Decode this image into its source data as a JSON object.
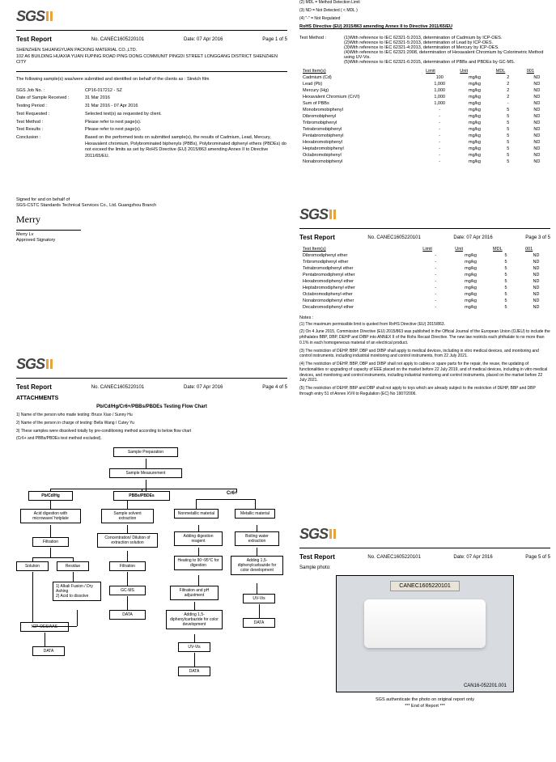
{
  "logo_text": "SGS",
  "report_label": "Test Report",
  "report_no_label": "No.",
  "report_no": "CANEC1605220101",
  "date_label": "Date:",
  "date": "07 Apr 2016",
  "page1": "Page 1 of 5",
  "page2_meta": "Page 2 of 5",
  "page3": "Page 3 of 5",
  "page4": "Page 4 of 5",
  "page5": "Page 5 of 5",
  "company_name": "SHENZHEN SHUANGYUAN PACKING MATERIAL CO.,LTD.",
  "company_addr": "102 A6 BUILDING HUAXIA YUAN FUPING ROAD PING DONG COMMUNIT PINGDI STREET LONGGANG DISTRICT SHENZHEN CITY",
  "intro": "The following sample(s) was/were submitted and identified on behalf of the clients as : Stretch film",
  "p1_rows": [
    {
      "l": "SGS Job No. :",
      "v": "CP16-017212 - SZ"
    },
    {
      "l": "Date of Sample Received :",
      "v": "31 Mar 2016"
    },
    {
      "l": "Testing Period :",
      "v": "31 Mar 2016 - 07 Apr 2016"
    },
    {
      "l": "Test Requested :",
      "v": "Selected test(s) as requested by client."
    },
    {
      "l": "Test Method :",
      "v": "Please refer to next page(s)."
    },
    {
      "l": "Test Results :",
      "v": "Please refer to next page(s)."
    },
    {
      "l": "Conclusion :",
      "v": "Based on the performed tests on submitted sample(s), the results of Cadmium, Lead, Mercury, Hexavalent chromium, Polybrominated biphenyls (PBBs), Polybrominated diphenyl ethers (PBDEs) do not exceed  the limits as set by RoHS Directive (EU) 2015/863 amending Annex II to Directive 2011/65/EU."
    }
  ],
  "signed_for": "Signed for and on behalf of",
  "signed_company": "SGS-CSTC Standards Technical Services Co., Ltd. Guangzhou Branch",
  "signature": "Merry",
  "signatory_name": "Merry Lv",
  "signatory_title": "Approved Signatory",
  "p2_prenotes": [
    "(2) MDL = Method Detection Limit",
    "(3) ND = Not Detected ( < MDL )",
    "(4) \"-\" = Not Regulated"
  ],
  "rohs_title": "RoHS Directive (EU) 2015/863 amending Annex II to Directive 2011/65/EU",
  "p2_method_label": "Test Method :",
  "p2_methods": [
    "(1)With reference to IEC 62321-5:2013, determination of Cadmium by ICP-OES.",
    "(2)With reference to IEC 62321-5:2013, determination of Lead by ICP-OES.",
    "(3)With reference to IEC 62321-4:2013, determination of Mercury by ICP-OES.",
    "(4)With reference to IEC 62321:2008, determination of Hexavalent Chromium by Colorimetric Method using UV-Vis.",
    "(5)With reference to IEC 62321-6:2015, determination of PBBs and PBDEs by GC-MS."
  ],
  "table_headers": [
    "Test Item(s)",
    "Limit",
    "Unit",
    "MDL",
    "001"
  ],
  "p2_table": [
    [
      "Cadmium (Cd)",
      "100",
      "mg/kg",
      "2",
      "ND"
    ],
    [
      "Lead (Pb)",
      "1,000",
      "mg/kg",
      "2",
      "ND"
    ],
    [
      "Mercury (Hg)",
      "1,000",
      "mg/kg",
      "2",
      "ND"
    ],
    [
      "Hexavalent Chromium (CrVI)",
      "1,000",
      "mg/kg",
      "2",
      "ND"
    ],
    [
      "Sum of PBBs",
      "1,000",
      "mg/kg",
      "-",
      "ND"
    ],
    [
      "Monobromobiphenyl",
      "-",
      "mg/kg",
      "5",
      "ND"
    ],
    [
      "Dibromobiphenyl",
      "-",
      "mg/kg",
      "5",
      "ND"
    ],
    [
      "Tribromobiphenyl",
      "-",
      "mg/kg",
      "5",
      "ND"
    ],
    [
      "Tetrabromobiphenyl",
      "-",
      "mg/kg",
      "5",
      "ND"
    ],
    [
      "Pentabromobiphenyl",
      "-",
      "mg/kg",
      "5",
      "ND"
    ],
    [
      "Hexabromobiphenyl",
      "-",
      "mg/kg",
      "5",
      "ND"
    ],
    [
      "Heptabromobiphenyl",
      "-",
      "mg/kg",
      "5",
      "ND"
    ],
    [
      "Octabromobiphenyl",
      "-",
      "mg/kg",
      "5",
      "ND"
    ],
    [
      "Nonabromobiphenyl",
      "-",
      "mg/kg",
      "5",
      "ND"
    ]
  ],
  "p3_table": [
    [
      "Dibromodiphenyl ether",
      "-",
      "mg/kg",
      "5",
      "ND"
    ],
    [
      "Tribromodiphenyl ether",
      "-",
      "mg/kg",
      "5",
      "ND"
    ],
    [
      "Tetrabromodiphenyl ether",
      "-",
      "mg/kg",
      "5",
      "ND"
    ],
    [
      "Pentabromodiphenyl ether",
      "-",
      "mg/kg",
      "5",
      "ND"
    ],
    [
      "Hexabromodiphenyl ether",
      "-",
      "mg/kg",
      "5",
      "ND"
    ],
    [
      "Heptabromodiphenyl ether",
      "-",
      "mg/kg",
      "5",
      "ND"
    ],
    [
      "Octabromodiphenyl ether",
      "-",
      "mg/kg",
      "5",
      "ND"
    ],
    [
      "Nonabromodiphenyl ether",
      "-",
      "mg/kg",
      "5",
      "ND"
    ],
    [
      "Decabromodiphenyl ether",
      "-",
      "mg/kg",
      "5",
      "ND"
    ]
  ],
  "notes_label": "Notes :",
  "p3_notes": [
    "(1) The maximum permissible limit is quoted from RoHS Directive (EU) 2015/863.",
    "(2) On 4 June  2015, Commission Directive (EU) 2015/863 was published in the Official Journal of the European Union (OJEU) to include the phthalates BBP, DBP, DEHP and DIBP into ANNEX II of the Rohs Recast Directive. The new law restricts each phthalate to no more than 0.1% in each homogeneous material of an electrical product.",
    "(3) The restriction of DEHP, BBP, DBP and DIBP shall apply to medical devices, including in vitro medical devices, and monitoring and control instruments, including industrial monitoring and control instruments, from 22 July 2021.",
    "(4) The restriction of DEHP, BBP, DBP and DIBP shall not apply to cables or spare parts for the repair, the reuse, the updating of functionalities or upgrading of capacity of EEE placed on the market before 22 July 2019, and of medical devices, including in vitro medical devices, and monitoring and control instruments, including industrial monitoring and control instruments, placed on the market before 22 July 2021.",
    "(5) The restriction of DEHP, BBP and DBP shall not apply to toys which are already subject to the restriction of DEHP, BBP and DBP through entry 51 of Annex XVII to Regulation (EC) No 1907/2006."
  ],
  "attachments_label": "ATTACHMENTS",
  "flow_title": "Pb/Cd/Hg/Cr6+/PBBs/PBDEs Testing Flow Chart",
  "flow_intro": [
    "1) Name of the person who made testing:  Bruce Xiao / Sunny Hu",
    "2) Name of the person in charge of testing:  Bella Wang / Cutey Yu",
    "3) These samples were dissolved totally by  pre-conditioning method according to below flow chart",
    "(Cr6+ and PBBs/PBDEs test method excluded)."
  ],
  "flow": {
    "sample_prep": "Sample Preparation",
    "sample_meas": "Sample Measurement",
    "h1": "Pb/Cd/Hg",
    "h2": "PBBs/PBDEs",
    "h3": "Cr6+",
    "acid": "Acid digestion with microwave/ hotplate",
    "solvent": "Sample solvent extraction",
    "nonmetal": "Nonmetallic material",
    "metal": "Metallic material",
    "filtration": "Filtration",
    "conc": "Concentration/ Dilution of extraction solution",
    "add_reagent": "Adding digestion reagent",
    "boiling": "Boiling water extraction",
    "solution": "Solution",
    "residue": "Residue",
    "heat": "Heating to 90~95°C for digestion",
    "add15a": "Adding 1,5-diphenylcarbazide for color development",
    "alkali": "1) Alkali Fusion / Dry Ashing\n2) Acid to dissolve",
    "filt_ph": "Filtration and pH adjustment",
    "uvvis": "UV-Vis",
    "icp": "ICP-OES/AAS",
    "gcms": "GC-MS",
    "add15b": "Adding 1,5-diphenylcarbazide for color development",
    "data": "DATA"
  },
  "sample_photo_label": "Sample photo:",
  "sample_id_plaque": "CANEC1605220101",
  "sample_caption": "CAN16-052201.001",
  "auth_note": "SGS authenticate the photo on original report only",
  "end_report": "*** End of Report ***"
}
